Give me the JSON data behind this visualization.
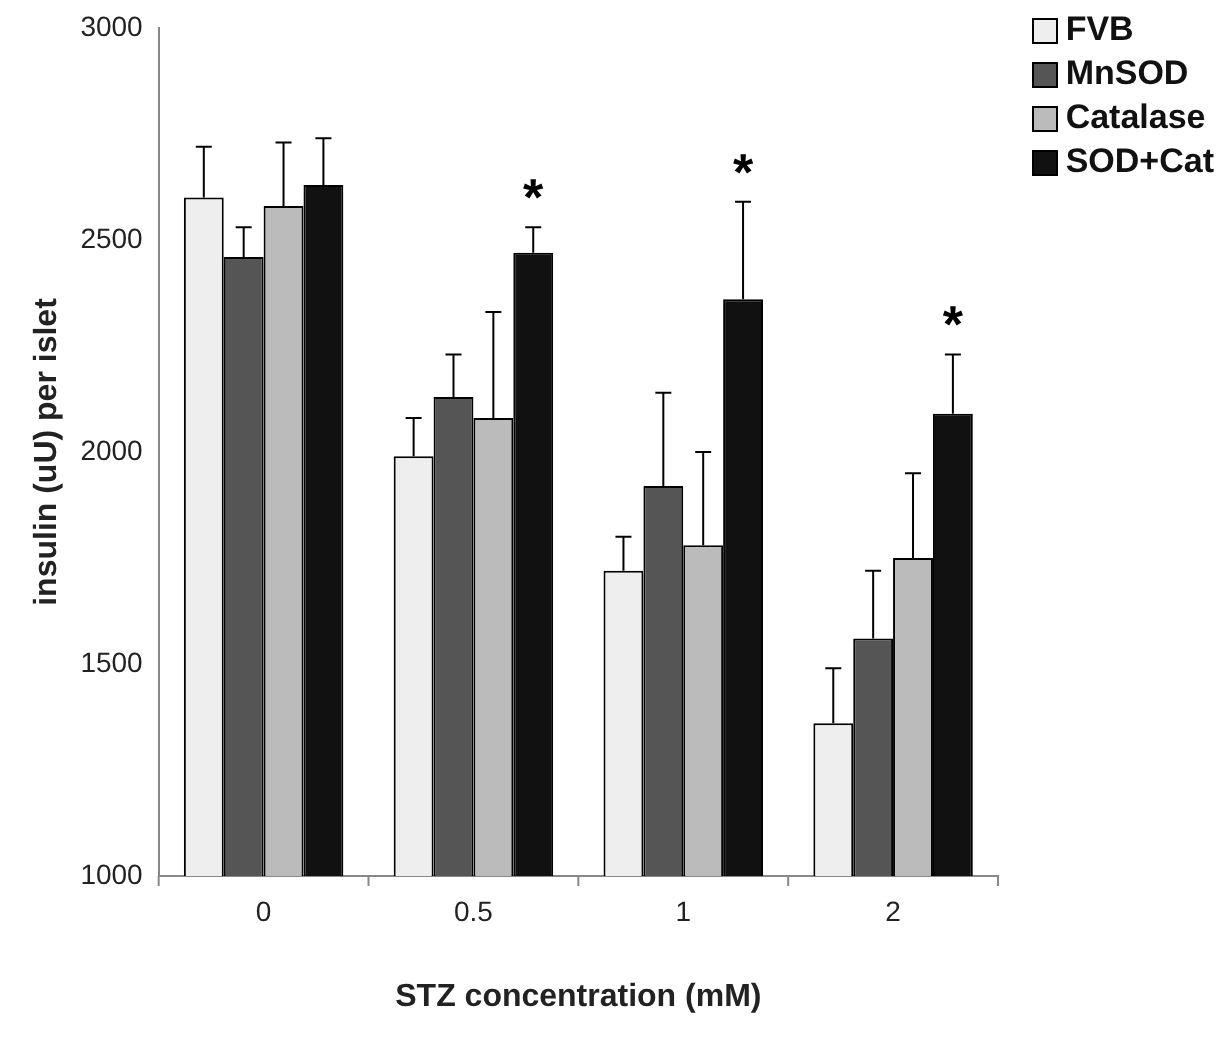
{
  "chart_data": {
    "type": "bar",
    "xlabel": "STZ concentration (mM)",
    "ylabel": "insulin (uU) per islet",
    "categories": [
      "0",
      "0.5",
      "1",
      "2"
    ],
    "series": [
      {
        "name": "FVB",
        "color": "#eeeeee",
        "values": [
          2600,
          1990,
          1720,
          1360
        ],
        "errors": [
          [
            2600,
            2720
          ],
          [
            1990,
            2080
          ],
          [
            1720,
            1800
          ],
          [
            1360,
            1490
          ]
        ]
      },
      {
        "name": "MnSOD",
        "color": "#555555",
        "values": [
          2460,
          2130,
          1920,
          1560
        ],
        "errors": [
          [
            2460,
            2530
          ],
          [
            2130,
            2230
          ],
          [
            1920,
            2140
          ],
          [
            1560,
            1720
          ]
        ]
      },
      {
        "name": "Catalase",
        "color": "#bbbbbb",
        "values": [
          2580,
          2080,
          1780,
          1750
        ],
        "errors": [
          [
            2580,
            2730
          ],
          [
            2080,
            2330
          ],
          [
            1780,
            2000
          ],
          [
            1750,
            1950
          ]
        ]
      },
      {
        "name": "SOD+Cat",
        "color": "#111111",
        "values": [
          2630,
          2470,
          2360,
          2090
        ],
        "errors": [
          [
            2630,
            2740
          ],
          [
            2470,
            2530
          ],
          [
            2360,
            2590
          ],
          [
            2090,
            2230
          ]
        ]
      }
    ],
    "ylim": [
      1000,
      3000
    ],
    "yticks": [
      1000,
      1500,
      2000,
      2500,
      3000
    ],
    "grid": false,
    "legend": "top right",
    "annotations": [
      "*",
      "*",
      "*"
    ]
  }
}
